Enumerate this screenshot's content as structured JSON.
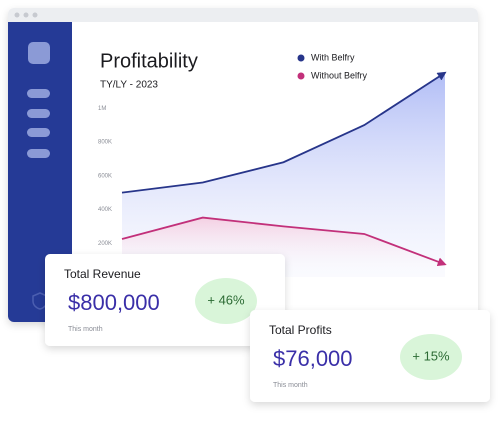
{
  "chart_data": {
    "type": "line",
    "title": "Profitability",
    "subtitle": "TY/LY - 2023",
    "categories": [
      null,
      null,
      null,
      null,
      null
    ],
    "series": [
      {
        "name": "With Belfry",
        "color": "#27358a",
        "values": [
          500000,
          560000,
          680000,
          900000,
          1210000
        ]
      },
      {
        "name": "Without Belfry",
        "color": "#c2307a",
        "values": [
          225000,
          352000,
          300000,
          255000,
          75000
        ]
      }
    ],
    "ylim": [
      0,
      1300000
    ],
    "yticks": [
      {
        "value": 200000,
        "label": "200K"
      },
      {
        "value": 400000,
        "label": "400K"
      },
      {
        "value": 600000,
        "label": "600K"
      },
      {
        "value": 800000,
        "label": "800K"
      },
      {
        "value": 1000000,
        "label": "1M"
      }
    ],
    "legend": "top-right"
  },
  "cards": [
    {
      "title": "Total Revenue",
      "amount": "$800,000",
      "period": "This month",
      "change": "+ 46%"
    },
    {
      "title": "Total Profits",
      "amount": "$76,000",
      "period": "This month",
      "change": "+ 15%"
    }
  ]
}
